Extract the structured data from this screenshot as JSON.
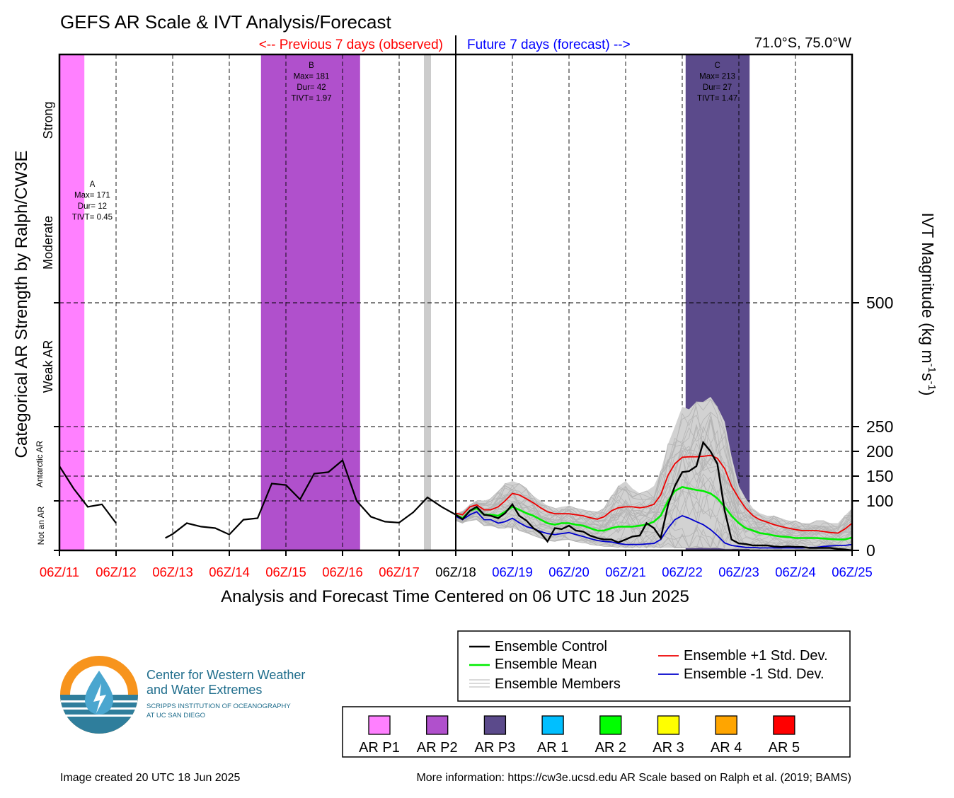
{
  "title": "GEFS AR Scale & IVT Analysis/Forecast",
  "prev_label": "<-- Previous 7 days (observed)",
  "future_label": "Future 7 days (forecast) -->",
  "location": "71.0°S, 75.0°W",
  "left_axis_title": "Categorical AR Strength by Ralph/CW3E",
  "right_axis_title": "IVT Magnitude (kg m",
  "right_axis_title_sup1": "-1",
  "right_axis_title_mid": "s",
  "right_axis_title_sup2": "-1",
  "right_axis_title_end": ")",
  "x_axis_title": "Analysis and Forecast Time Centered on 06 UTC 18 Jun 2025",
  "colors": {
    "past": "#ff0000",
    "present": "#000000",
    "future": "#0000ff",
    "control": "#000000",
    "mean": "#00ee00",
    "plus_sd": "#ee0000",
    "minus_sd": "#0000cc",
    "members": "#b4b4b4",
    "spread": "#d0d0d0",
    "ar_p1": "#ff80ff",
    "ar_p2": "#b050cc",
    "ar_p3": "#5b4a8b",
    "ar1": "#00bfff",
    "ar2": "#00ff00",
    "ar3": "#ffff00",
    "ar4": "#ffa500",
    "ar5": "#ff0000",
    "obs_marker": "#cccccc"
  },
  "categories": [
    {
      "label": "Strong",
      "axis": "left"
    },
    {
      "label": "Moderate",
      "axis": "left"
    },
    {
      "label": "Weak AR",
      "axis": "left"
    },
    {
      "label": "Antarctic AR",
      "axis": "left"
    },
    {
      "label": "Not an AR",
      "axis": "left"
    }
  ],
  "events": [
    {
      "id": "A",
      "max": "Max= 171",
      "dur": "Dur= 12",
      "tivt": "TIVT= 0.45",
      "category": "AR P1",
      "start_day": 0,
      "end_day": 0.44
    },
    {
      "id": "B",
      "max": "Max= 181",
      "dur": "Dur= 42",
      "tivt": "TIVT= 1.97",
      "category": "AR P2",
      "start_day": 3.56,
      "end_day": 5.31
    },
    {
      "id": "C",
      "max": "Max= 213",
      "dur": "Dur= 27",
      "tivt": "TIVT= 1.47",
      "category": "AR P3",
      "start_day": 11.06,
      "end_day": 12.19
    }
  ],
  "obs_marker_day": 6.5,
  "legend": {
    "control": "Ensemble Control",
    "mean": "Ensemble Mean",
    "members": "Ensemble Members",
    "plus_sd": "Ensemble +1 Std. Dev.",
    "minus_sd": "Ensemble -1 Std. Dev."
  },
  "ar_scale_legend": [
    {
      "label": "AR P1",
      "color": "#ff80ff"
    },
    {
      "label": "AR P2",
      "color": "#b050cc"
    },
    {
      "label": "AR P3",
      "color": "#5b4a8b"
    },
    {
      "label": "AR 1",
      "color": "#00bfff"
    },
    {
      "label": "AR 2",
      "color": "#00ff00"
    },
    {
      "label": "AR 3",
      "color": "#ffff00"
    },
    {
      "label": "AR 4",
      "color": "#ffa500"
    },
    {
      "label": "AR 5",
      "color": "#ff0000"
    }
  ],
  "logo": {
    "line1": "Center for Western Weather",
    "line2": "and Water Extremes",
    "line3": "SCRIPPS INSTITUTION OF OCEANOGRAPHY",
    "line4": "AT UC SAN DIEGO"
  },
  "footer_left": "Image created 20 UTC 18 Jun 2025",
  "footer_right": "More information: https://cw3e.ucsd.edu AR Scale based on Ralph et al. (2019; BAMS)",
  "chart_data": {
    "type": "line",
    "title": "GEFS AR Scale & IVT Analysis/Forecast",
    "xlabel": "Analysis and Forecast Time Centered on 06 UTC 18 Jun 2025",
    "ylabel": "IVT Magnitude (kg m-1 s-1)",
    "x_ticks": [
      {
        "label": "06Z/11",
        "period": "past"
      },
      {
        "label": "06Z/12",
        "period": "past"
      },
      {
        "label": "06Z/13",
        "period": "past"
      },
      {
        "label": "06Z/14",
        "period": "past"
      },
      {
        "label": "06Z/15",
        "period": "past"
      },
      {
        "label": "06Z/16",
        "period": "past"
      },
      {
        "label": "06Z/17",
        "period": "past"
      },
      {
        "label": "06Z/18",
        "period": "present"
      },
      {
        "label": "06Z/19",
        "period": "future"
      },
      {
        "label": "06Z/20",
        "period": "future"
      },
      {
        "label": "06Z/21",
        "period": "future"
      },
      {
        "label": "06Z/22",
        "period": "future"
      },
      {
        "label": "06Z/23",
        "period": "future"
      },
      {
        "label": "06Z/24",
        "period": "future"
      },
      {
        "label": "06Z/25",
        "period": "future"
      }
    ],
    "xlim": [
      0,
      14
    ],
    "right_axis_ticks": [
      0,
      100,
      150,
      200,
      250,
      500
    ],
    "ylim": [
      0,
      1000
    ],
    "grid": true,
    "observed": {
      "name": "Ensemble Control",
      "segments": [
        [
          [
            0,
            170
          ],
          [
            0.25,
            125
          ],
          [
            0.5,
            88
          ],
          [
            0.75,
            93
          ],
          [
            1.0,
            55
          ]
        ],
        [
          [
            1.87,
            25
          ],
          [
            2.0,
            33
          ],
          [
            2.25,
            55
          ],
          [
            2.5,
            48
          ],
          [
            2.75,
            45
          ],
          [
            3.0,
            32
          ],
          [
            3.25,
            62
          ],
          [
            3.5,
            65
          ],
          [
            3.75,
            135
          ],
          [
            4.0,
            132
          ],
          [
            4.25,
            103
          ],
          [
            4.5,
            155
          ],
          [
            4.75,
            158
          ],
          [
            5.0,
            182
          ],
          [
            5.25,
            100
          ],
          [
            5.5,
            68
          ],
          [
            5.75,
            58
          ],
          [
            6.0,
            56
          ],
          [
            6.25,
            77
          ],
          [
            6.5,
            107
          ],
          [
            6.75,
            88
          ],
          [
            7.0,
            72
          ]
        ]
      ]
    },
    "forecast": {
      "x": [
        7.0,
        7.12,
        7.25,
        7.37,
        7.5,
        7.62,
        7.75,
        7.87,
        8.0,
        8.12,
        8.25,
        8.37,
        8.5,
        8.62,
        8.75,
        8.87,
        9.0,
        9.12,
        9.25,
        9.37,
        9.5,
        9.62,
        9.75,
        9.87,
        10.0,
        10.12,
        10.25,
        10.37,
        10.5,
        10.62,
        10.75,
        10.87,
        11.0,
        11.12,
        11.25,
        11.37,
        11.5,
        11.62,
        11.75,
        11.87,
        12.0,
        12.12,
        12.25,
        12.37,
        12.5,
        12.62,
        12.75,
        12.87,
        13.0,
        13.12,
        13.25,
        13.37,
        13.5,
        13.62,
        13.75,
        13.87,
        14.0
      ],
      "series": [
        {
          "name": "Ensemble Control",
          "values": [
            72,
            63,
            80,
            88,
            72,
            70,
            65,
            75,
            93,
            70,
            60,
            45,
            35,
            18,
            45,
            43,
            50,
            40,
            38,
            30,
            25,
            22,
            22,
            16,
            22,
            28,
            30,
            55,
            45,
            25,
            92,
            130,
            158,
            160,
            170,
            218,
            200,
            175,
            80,
            22,
            14,
            13,
            10,
            10,
            10,
            8,
            7,
            8,
            7,
            7,
            5,
            5,
            5,
            5,
            3,
            2,
            0
          ]
        },
        {
          "name": "Ensemble Mean",
          "values": [
            72,
            65,
            80,
            85,
            72,
            72,
            70,
            78,
            88,
            82,
            75,
            70,
            62,
            55,
            52,
            55,
            55,
            52,
            50,
            45,
            40,
            40,
            45,
            48,
            48,
            48,
            50,
            52,
            58,
            70,
            100,
            120,
            128,
            125,
            122,
            120,
            115,
            105,
            88,
            70,
            55,
            45,
            40,
            35,
            33,
            30,
            28,
            27,
            25,
            25,
            25,
            25,
            24,
            23,
            22,
            22,
            26
          ]
        },
        {
          "name": "Ensemble +1 Std. Dev.",
          "values": [
            75,
            72,
            88,
            92,
            82,
            82,
            88,
            100,
            115,
            112,
            104,
            96,
            86,
            78,
            74,
            74,
            74,
            72,
            70,
            66,
            63,
            68,
            80,
            86,
            88,
            88,
            86,
            88,
            93,
            112,
            152,
            175,
            188,
            189,
            189,
            190,
            192,
            186,
            165,
            130,
            105,
            85,
            70,
            62,
            57,
            52,
            48,
            45,
            42,
            40,
            40,
            40,
            38,
            36,
            35,
            43,
            55
          ]
        },
        {
          "name": "Ensemble -1 Std. Dev.",
          "values": [
            69,
            62,
            72,
            78,
            62,
            62,
            55,
            58,
            65,
            56,
            48,
            44,
            38,
            34,
            32,
            34,
            36,
            32,
            28,
            24,
            20,
            18,
            17,
            14,
            12,
            12,
            12,
            13,
            14,
            22,
            45,
            62,
            70,
            65,
            58,
            52,
            42,
            30,
            15,
            10,
            8,
            6,
            6,
            5,
            5,
            5,
            5,
            5,
            5,
            5,
            6,
            6,
            8,
            9,
            10,
            10,
            12
          ]
        }
      ],
      "spread_max": [
        75,
        80,
        92,
        100,
        100,
        105,
        120,
        135,
        140,
        135,
        125,
        110,
        100,
        90,
        85,
        88,
        90,
        85,
        82,
        80,
        78,
        85,
        110,
        130,
        140,
        125,
        115,
        120,
        130,
        160,
        215,
        250,
        290,
        285,
        300,
        300,
        310,
        290,
        260,
        190,
        130,
        105,
        85,
        75,
        70,
        70,
        65,
        60,
        60,
        55,
        55,
        60,
        60,
        55,
        55,
        70,
        85
      ],
      "spread_min": [
        60,
        55,
        60,
        62,
        50,
        50,
        45,
        45,
        45,
        40,
        35,
        30,
        25,
        20,
        18,
        20,
        22,
        18,
        15,
        12,
        10,
        8,
        8,
        6,
        5,
        5,
        5,
        5,
        5,
        5,
        5,
        5,
        5,
        5,
        5,
        5,
        5,
        5,
        3,
        3,
        3,
        3,
        3,
        3,
        3,
        3,
        3,
        3,
        3,
        3,
        3,
        3,
        3,
        3,
        3,
        3,
        3
      ]
    }
  }
}
